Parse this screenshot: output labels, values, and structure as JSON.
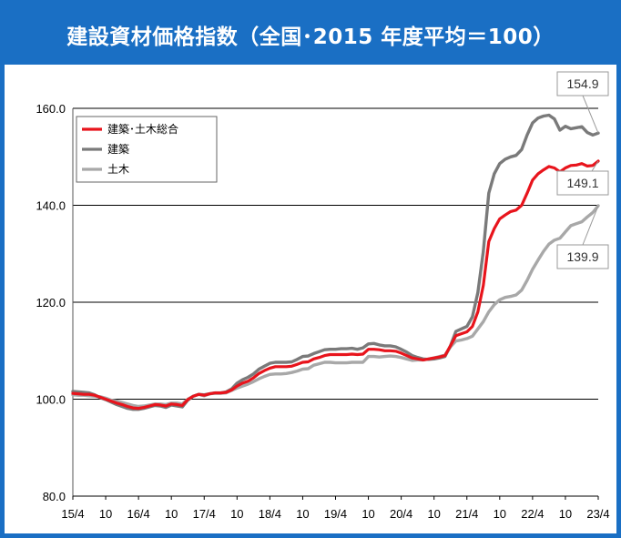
{
  "title": "建設資材価格指数（全国･2015 年度平均＝100）",
  "colors": {
    "brand": "#1a6fc4",
    "total": "#e8141c",
    "building": "#7a7a7a",
    "civil": "#a8a8a8",
    "callout_border": "#9a9a9a"
  },
  "chart_data": {
    "type": "line",
    "title": "建設資材価格指数（全国･2015 年度平均＝100）",
    "xlabel": "",
    "ylabel": "",
    "ylim": [
      80,
      160
    ],
    "yticks": [
      "160.0",
      "140.0",
      "120.0",
      "100.0",
      "80.0"
    ],
    "xticks": [
      "15/4",
      "10",
      "16/4",
      "10",
      "17/4",
      "10",
      "18/4",
      "10",
      "19/4",
      "10",
      "20/4",
      "10",
      "21/4",
      "10",
      "22/4",
      "10",
      "23/4"
    ],
    "x": [
      "15/4",
      "15/5",
      "15/6",
      "15/7",
      "15/8",
      "15/9",
      "15/10",
      "15/11",
      "15/12",
      "16/1",
      "16/2",
      "16/3",
      "16/4",
      "16/5",
      "16/6",
      "16/7",
      "16/8",
      "16/9",
      "16/10",
      "16/11",
      "16/12",
      "17/1",
      "17/2",
      "17/3",
      "17/4",
      "17/5",
      "17/6",
      "17/7",
      "17/8",
      "17/9",
      "17/10",
      "17/11",
      "17/12",
      "18/1",
      "18/2",
      "18/3",
      "18/4",
      "18/5",
      "18/6",
      "18/7",
      "18/8",
      "18/9",
      "18/10",
      "18/11",
      "18/12",
      "19/1",
      "19/2",
      "19/3",
      "19/4",
      "19/5",
      "19/6",
      "19/7",
      "19/8",
      "19/9",
      "19/10",
      "19/11",
      "19/12",
      "20/1",
      "20/2",
      "20/3",
      "20/4",
      "20/5",
      "20/6",
      "20/7",
      "20/8",
      "20/9",
      "20/10",
      "20/11",
      "20/12",
      "21/1",
      "21/2",
      "21/3",
      "21/4",
      "21/5",
      "21/6",
      "21/7",
      "21/8",
      "21/9",
      "21/10",
      "21/11",
      "21/12",
      "22/1",
      "22/2",
      "22/3",
      "22/4",
      "22/5",
      "22/6",
      "22/7",
      "22/8",
      "22/9",
      "22/10",
      "22/11",
      "22/12",
      "23/1",
      "23/2",
      "23/3",
      "23/4"
    ],
    "grid": true,
    "legend": "top-left",
    "series": [
      {
        "name": "建築･土木総合",
        "color_key": "total",
        "values": [
          101.2,
          101.1,
          101.0,
          101.0,
          100.8,
          100.4,
          100.0,
          99.6,
          99.2,
          98.9,
          98.5,
          98.2,
          98.1,
          98.3,
          98.6,
          98.9,
          98.8,
          98.6,
          99.0,
          98.9,
          98.7,
          99.9,
          100.6,
          101.0,
          100.8,
          101.1,
          101.3,
          101.3,
          101.4,
          101.9,
          102.7,
          103.3,
          103.7,
          104.4,
          105.3,
          105.9,
          106.4,
          106.7,
          106.7,
          106.7,
          106.8,
          107.2,
          107.6,
          107.7,
          108.3,
          108.6,
          109.0,
          109.2,
          109.2,
          109.2,
          109.2,
          109.3,
          109.2,
          109.3,
          110.3,
          110.3,
          110.2,
          110.0,
          110.0,
          109.9,
          109.5,
          109.0,
          108.5,
          108.3,
          108.1,
          108.3,
          108.5,
          108.7,
          109.0,
          111.0,
          113.1,
          113.5,
          113.9,
          115.0,
          118.0,
          123.5,
          132.5,
          135.2,
          137.2,
          138.0,
          138.7,
          139.0,
          140.0,
          142.5,
          145.2,
          146.5,
          147.3,
          148.0,
          147.7,
          146.9,
          147.7,
          148.2,
          148.3,
          148.6,
          148.1,
          148.2,
          149.1
        ]
      },
      {
        "name": "建築",
        "color_key": "building",
        "values": [
          101.6,
          101.5,
          101.4,
          101.3,
          100.9,
          100.3,
          99.9,
          99.4,
          98.9,
          98.5,
          98.1,
          97.9,
          97.9,
          98.1,
          98.4,
          98.7,
          98.6,
          98.3,
          98.8,
          98.6,
          98.4,
          99.8,
          100.6,
          101.0,
          100.9,
          101.1,
          101.3,
          101.3,
          101.5,
          102.1,
          103.3,
          104.0,
          104.5,
          105.2,
          106.2,
          106.8,
          107.4,
          107.6,
          107.6,
          107.6,
          107.7,
          108.2,
          108.8,
          108.9,
          109.4,
          109.8,
          110.2,
          110.3,
          110.3,
          110.4,
          110.4,
          110.5,
          110.3,
          110.6,
          111.4,
          111.5,
          111.2,
          111.0,
          111.0,
          110.8,
          110.3,
          109.7,
          109.0,
          108.6,
          108.3,
          108.2,
          108.3,
          108.5,
          108.8,
          111.0,
          114.0,
          114.5,
          115.0,
          117.0,
          122.0,
          130.5,
          142.5,
          146.5,
          148.6,
          149.5,
          150.0,
          150.3,
          151.5,
          154.5,
          157.0,
          158.0,
          158.4,
          158.6,
          157.8,
          155.5,
          156.3,
          155.8,
          156.0,
          156.2,
          155.0,
          154.5,
          154.9
        ]
      },
      {
        "name": "土木",
        "color_key": "civil",
        "values": [
          100.9,
          100.8,
          100.8,
          100.7,
          100.6,
          100.5,
          100.2,
          99.8,
          99.6,
          99.3,
          99.0,
          98.7,
          98.5,
          98.6,
          98.8,
          99.0,
          99.0,
          98.9,
          99.2,
          99.2,
          99.0,
          100.0,
          100.6,
          101.0,
          100.7,
          101.1,
          101.2,
          101.2,
          101.3,
          101.8,
          102.3,
          102.7,
          103.1,
          103.6,
          104.2,
          104.7,
          105.1,
          105.2,
          105.2,
          105.3,
          105.5,
          105.8,
          106.2,
          106.3,
          107.0,
          107.3,
          107.6,
          107.6,
          107.5,
          107.5,
          107.5,
          107.6,
          107.6,
          107.6,
          108.8,
          108.8,
          108.7,
          108.8,
          108.9,
          108.8,
          108.6,
          108.3,
          108.0,
          108.1,
          108.1,
          108.3,
          108.5,
          108.8,
          109.1,
          110.8,
          112.0,
          112.2,
          112.5,
          113.0,
          114.5,
          116.0,
          118.0,
          119.5,
          120.5,
          121.0,
          121.2,
          121.5,
          122.5,
          124.5,
          126.8,
          128.7,
          130.5,
          132.0,
          132.8,
          133.2,
          134.5,
          135.8,
          136.2,
          136.6,
          137.6,
          138.5,
          139.9
        ]
      }
    ],
    "annotations": [
      "154.9",
      "149.1",
      "139.9"
    ]
  }
}
